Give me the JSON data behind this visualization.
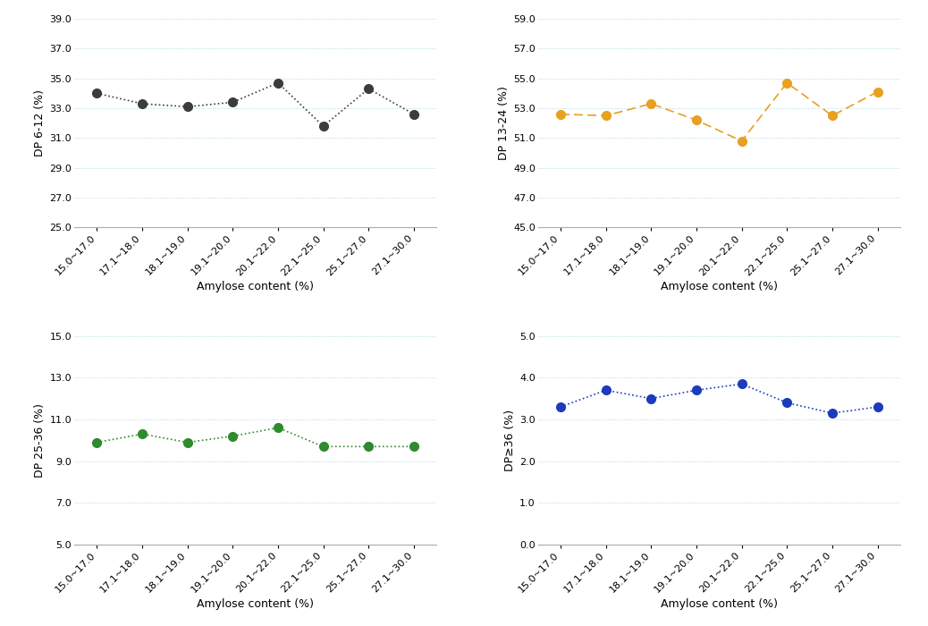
{
  "categories": [
    "15.0~17.0",
    "17.1~18.0",
    "18.1~19.0",
    "19.1~20.0",
    "20.1~22.0",
    "22.1~25.0",
    "25.1~27.0",
    "27.1~30.0"
  ],
  "dp6_12": [
    34.0,
    33.3,
    33.1,
    33.4,
    34.7,
    31.8,
    34.3,
    32.6
  ],
  "dp13_24": [
    52.6,
    52.5,
    53.3,
    52.2,
    50.8,
    54.7,
    52.5,
    54.1
  ],
  "dp25_36": [
    9.9,
    10.3,
    9.9,
    10.2,
    10.6,
    9.7,
    9.7,
    9.7
  ],
  "dp_gt36": [
    3.3,
    3.7,
    3.5,
    3.7,
    3.85,
    3.4,
    3.15,
    3.3
  ],
  "color_dp6_12": "#3c3c3c",
  "color_dp13_24": "#e8a020",
  "color_dp25_36": "#2e8b2e",
  "color_dp_gt36": "#1c3bbd",
  "xlabel": "Amylose content (%)",
  "ylabel_dp6_12": "DP 6-12 (%)",
  "ylabel_dp13_24": "DP 13-24 (%)",
  "ylabel_dp25_36": "DP 25-36 (%)",
  "ylabel_dp_gt36": "DP≥36 (%)",
  "ylim_dp6_12": [
    25.0,
    39.0
  ],
  "ylim_dp13_24": [
    45.0,
    59.0
  ],
  "ylim_dp25_36": [
    5.0,
    15.0
  ],
  "ylim_dp_gt36": [
    0.0,
    5.0
  ],
  "yticks_dp6_12": [
    25.0,
    27.0,
    29.0,
    31.0,
    33.0,
    35.0,
    37.0,
    39.0
  ],
  "yticks_dp13_24": [
    45.0,
    47.0,
    49.0,
    51.0,
    53.0,
    55.0,
    57.0,
    59.0
  ],
  "yticks_dp25_36": [
    5.0,
    7.0,
    9.0,
    11.0,
    13.0,
    15.0
  ],
  "yticks_dp_gt36": [
    0.0,
    1.0,
    2.0,
    3.0,
    4.0,
    5.0
  ],
  "grid_color": "#add8e6",
  "background_color": "#ffffff",
  "markersize": 7,
  "linewidth": 1.2,
  "label_fontsize": 9,
  "tick_fontsize": 8
}
